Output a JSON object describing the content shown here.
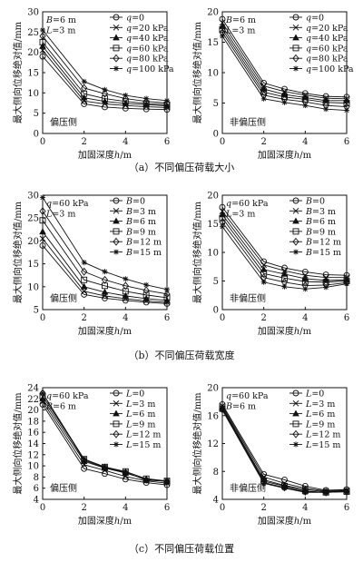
{
  "chart_data": [
    {
      "type": "line",
      "xlabel": "加固深度h/m",
      "ylabel": "最大侧向位移绝对值/mm",
      "xlim": [
        0,
        6
      ],
      "ylim": [
        0,
        30
      ],
      "xticks": [
        0,
        2,
        4,
        6
      ],
      "yticks": [
        0,
        5,
        10,
        15,
        20,
        25,
        30
      ],
      "annotations": [
        "B=6 m",
        "L=3 m"
      ],
      "side_label": "偏压侧",
      "x": [
        0,
        2,
        3,
        4,
        5,
        6
      ],
      "series": [
        {
          "name": "q=0",
          "marker": "circle",
          "values": [
            19,
            7.3,
            6.5,
            6.2,
            6.0,
            5.9
          ]
        },
        {
          "name": "q=20 kPa",
          "marker": "x",
          "values": [
            20.5,
            8.0,
            7.3,
            6.9,
            6.6,
            6.4
          ]
        },
        {
          "name": "q=40 kPa",
          "marker": "triangle",
          "values": [
            21.5,
            8.8,
            7.9,
            7.4,
            7.1,
            6.8
          ]
        },
        {
          "name": "q=60 kPa",
          "marker": "square",
          "values": [
            22.5,
            9.8,
            8.6,
            7.9,
            7.4,
            7.1
          ]
        },
        {
          "name": "q=80 kPa",
          "marker": "diamond",
          "values": [
            24,
            11.2,
            9.8,
            8.6,
            7.9,
            7.5
          ]
        },
        {
          "name": "q=100 kPa",
          "marker": "star",
          "values": [
            25.5,
            12.8,
            10.8,
            9.4,
            8.6,
            8.1
          ]
        }
      ]
    },
    {
      "type": "line",
      "xlabel": "加固深度h/m",
      "ylabel": "最大侧向位移绝对值/mm",
      "xlim": [
        0,
        6
      ],
      "ylim": [
        0,
        20
      ],
      "xticks": [
        0,
        2,
        4,
        6
      ],
      "yticks": [
        0,
        5,
        10,
        15,
        20
      ],
      "annotations": [
        "B=6 m",
        "L=3 m"
      ],
      "side_label": "非偏压侧",
      "x": [
        0,
        2,
        3,
        4,
        5,
        6
      ],
      "series": [
        {
          "name": "q=0",
          "marker": "circle",
          "values": [
            18.8,
            8.3,
            7.3,
            6.6,
            6.1,
            6.0
          ]
        },
        {
          "name": "q=20 kPa",
          "marker": "x",
          "values": [
            18.2,
            7.8,
            6.9,
            6.3,
            5.8,
            5.7
          ]
        },
        {
          "name": "q=40 kPa",
          "marker": "triangle",
          "values": [
            17.6,
            7.3,
            6.4,
            5.9,
            5.4,
            5.4
          ]
        },
        {
          "name": "q=60 kPa",
          "marker": "square",
          "values": [
            17.1,
            6.8,
            6.0,
            5.6,
            5.1,
            5.0
          ]
        },
        {
          "name": "q=80 kPa",
          "marker": "diamond",
          "values": [
            16.6,
            6.3,
            5.6,
            5.2,
            4.6,
            4.4
          ]
        },
        {
          "name": "q=100 kPa",
          "marker": "star",
          "values": [
            16.0,
            5.7,
            5.1,
            4.6,
            4.0,
            3.8
          ]
        }
      ]
    },
    {
      "type": "line",
      "xlabel": "加固深度h/m",
      "ylabel": "最大侧向位移绝对值/mm",
      "xlim": [
        0,
        6
      ],
      "ylim": [
        5,
        30
      ],
      "xticks": [
        0,
        2,
        4,
        6
      ],
      "yticks": [
        5,
        10,
        15,
        20,
        25,
        30
      ],
      "annotations": [
        "q=60 kPa",
        "L=3 m"
      ],
      "side_label": "偏压侧",
      "x": [
        0,
        2,
        3,
        4,
        5,
        6
      ],
      "series": [
        {
          "name": "B=0",
          "marker": "circle",
          "values": [
            19,
            8.3,
            7.5,
            7.0,
            6.6,
            6.3
          ]
        },
        {
          "name": "B=3 m",
          "marker": "x",
          "values": [
            20.5,
            9.0,
            8.0,
            7.4,
            6.9,
            6.6
          ]
        },
        {
          "name": "B=6 m",
          "marker": "triangle",
          "values": [
            22,
            10.0,
            8.8,
            8.0,
            7.4,
            7.0
          ]
        },
        {
          "name": "B=9 m",
          "marker": "square",
          "values": [
            24.5,
            11.5,
            10.2,
            9.0,
            8.2,
            7.6
          ]
        },
        {
          "name": "B=12 m",
          "marker": "diamond",
          "values": [
            26.5,
            13.3,
            11.5,
            10.2,
            9.2,
            8.4
          ]
        },
        {
          "name": "B=15 m",
          "marker": "star",
          "values": [
            29.5,
            15.3,
            13.3,
            11.7,
            10.4,
            9.4
          ]
        }
      ]
    },
    {
      "type": "line",
      "xlabel": "加固深度h/m",
      "ylabel": "最大侧向位移绝对值/mm",
      "xlim": [
        0,
        6
      ],
      "ylim": [
        0,
        20
      ],
      "xticks": [
        0,
        2,
        4,
        6
      ],
      "yticks": [
        0,
        5,
        10,
        15,
        20
      ],
      "annotations": [
        "q=60 kPa",
        "L=3 m"
      ],
      "side_label": "非偏压侧",
      "x": [
        0,
        2,
        3,
        4,
        5,
        6
      ],
      "series": [
        {
          "name": "B=0",
          "marker": "circle",
          "values": [
            17.9,
            8.4,
            7.3,
            6.6,
            6.1,
            6.0
          ]
        },
        {
          "name": "B=3 m",
          "marker": "x",
          "values": [
            17.2,
            7.8,
            6.8,
            6.0,
            5.6,
            5.6
          ]
        },
        {
          "name": "B=6 m",
          "marker": "triangle",
          "values": [
            16.6,
            7.0,
            6.2,
            5.4,
            5.1,
            5.2
          ]
        },
        {
          "name": "B=9 m",
          "marker": "square",
          "values": [
            16.0,
            6.3,
            5.5,
            4.9,
            4.8,
            5.0
          ]
        },
        {
          "name": "B=12 m",
          "marker": "diamond",
          "values": [
            15.3,
            5.6,
            4.8,
            4.2,
            4.3,
            4.7
          ]
        },
        {
          "name": "B=15 m",
          "marker": "star",
          "values": [
            14.5,
            4.8,
            4.0,
            3.6,
            3.9,
            4.5
          ]
        }
      ]
    },
    {
      "type": "line",
      "xlabel": "加固深度h/m",
      "ylabel": "最大侧向位移绝对值/mm",
      "xlim": [
        0,
        6
      ],
      "ylim": [
        4,
        24
      ],
      "xticks": [
        0,
        2,
        4,
        6
      ],
      "yticks": [
        4,
        6,
        8,
        10,
        12,
        14,
        16,
        18,
        20,
        22,
        24
      ],
      "annotations": [
        "q=60 kPa",
        "B=6 m"
      ],
      "side_label": "偏压侧",
      "x": [
        0,
        2,
        3,
        4,
        5,
        6
      ],
      "series": [
        {
          "name": "L=0",
          "marker": "circle",
          "values": [
            21.0,
            9.5,
            8.6,
            7.6,
            7.0,
            6.6
          ]
        },
        {
          "name": "L=3 m",
          "marker": "x",
          "values": [
            21.5,
            10.2,
            9.2,
            8.1,
            7.3,
            6.9
          ]
        },
        {
          "name": "L=6 m",
          "marker": "triangle",
          "values": [
            22.0,
            10.8,
            9.6,
            8.7,
            7.6,
            7.2
          ]
        },
        {
          "name": "L=9 m",
          "marker": "square",
          "values": [
            22.5,
            11.2,
            9.8,
            9.0,
            7.7,
            7.3
          ]
        },
        {
          "name": "L=12 m",
          "marker": "diamond",
          "values": [
            23.0,
            11.0,
            9.7,
            8.8,
            7.5,
            7.2
          ]
        },
        {
          "name": "L=15 m",
          "marker": "star",
          "values": [
            23.0,
            11.2,
            9.8,
            8.9,
            7.4,
            7.3
          ]
        }
      ]
    },
    {
      "type": "line",
      "xlabel": "加固深度h/m",
      "ylabel": "最大侧向位移绝对值/mm",
      "xlim": [
        0,
        6
      ],
      "ylim": [
        4,
        20
      ],
      "xticks": [
        0,
        2,
        4,
        6
      ],
      "yticks": [
        4,
        8,
        12,
        16,
        20
      ],
      "annotations": [
        "q=60 kPa",
        "B=6 m"
      ],
      "side_label": "非偏压侧",
      "x": [
        0,
        2,
        3,
        4,
        5,
        6
      ],
      "series": [
        {
          "name": "L=0",
          "marker": "circle",
          "values": [
            17.6,
            7.6,
            6.8,
            5.9,
            5.3,
            5.4
          ]
        },
        {
          "name": "L=3 m",
          "marker": "x",
          "values": [
            17.4,
            7.2,
            6.3,
            5.6,
            5.2,
            5.3
          ]
        },
        {
          "name": "L=6 m",
          "marker": "triangle",
          "values": [
            17.2,
            6.8,
            6.0,
            5.4,
            5.1,
            5.2
          ]
        },
        {
          "name": "L=9 m",
          "marker": "square",
          "values": [
            17.0,
            6.6,
            5.9,
            5.2,
            5.0,
            5.1
          ]
        },
        {
          "name": "L=12 m",
          "marker": "diamond",
          "values": [
            16.9,
            6.4,
            5.7,
            5.1,
            5.0,
            5.1
          ]
        },
        {
          "name": "L=15 m",
          "marker": "star",
          "values": [
            16.8,
            6.3,
            5.6,
            5.0,
            5.0,
            5.2
          ]
        }
      ]
    }
  ],
  "captions": [
    "（a）不同偏压荷载大小",
    "（b）不同偏压荷载宽度",
    "（c）不同偏压荷载位置"
  ]
}
